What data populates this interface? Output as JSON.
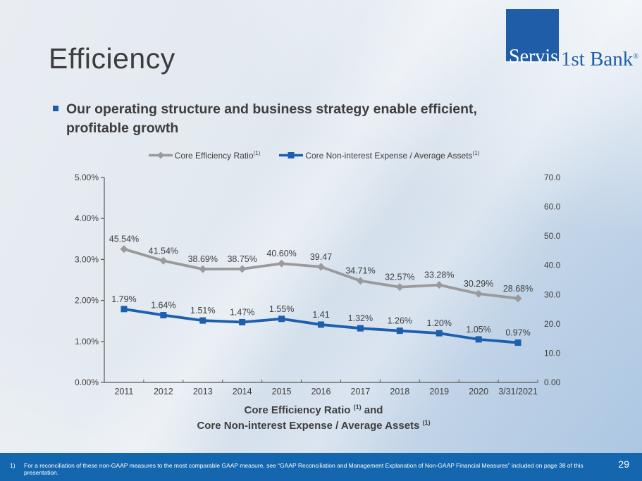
{
  "slide": {
    "title": "Efficiency",
    "bullet": "Our operating structure and business strategy enable efficient, profitable growth",
    "footnote_number": "1)",
    "footnote": "For a reconciliation of these non-GAAP measures to the most comparable GAAP measure, see “GAAP Reconciliation and Management Explanation of Non-GAAP Financial Measures” included on page 38 of this presentation.",
    "page_number": "29"
  },
  "logo": {
    "part1": "Servis",
    "part2": "1st Bank",
    "registered": "®",
    "square_color": "#1f5da8"
  },
  "colors": {
    "accent_blue": "#1f5da8",
    "series_gray": "#9a9a9a",
    "series_blue": "#1d5fad",
    "footer_bar": "#1467ae",
    "axis": "#595959",
    "text_dark": "#3e3e3e"
  },
  "chart_data": {
    "type": "line",
    "title_line1": "Core Efficiency Ratio",
    "title_sup1": "(1)",
    "title_join": "and",
    "title_line2": "Core Non-interest Expense / Average Assets",
    "title_sup2": "(1)",
    "categories": [
      "2011",
      "2012",
      "2013",
      "2014",
      "2015",
      "2016",
      "2017",
      "2018",
      "2019",
      "2020",
      "3/31/2021"
    ],
    "series": [
      {
        "name": "Core Efficiency Ratio",
        "sup": "(1)",
        "axis": "right",
        "color": "#9a9a9a",
        "marker": "diamond",
        "values": [
          45.54,
          41.54,
          38.69,
          38.75,
          40.6,
          39.47,
          34.71,
          32.57,
          33.28,
          30.29,
          28.68
        ],
        "labels": [
          "45.54%",
          "41.54%",
          "38.69%",
          "38.75%",
          "40.60%",
          "39.47",
          "34.71%",
          "32.57%",
          "33.28%",
          "30.29%",
          "28.68%"
        ]
      },
      {
        "name": "Core Non-interest Expense / Average Assets",
        "sup": "(1)",
        "axis": "left",
        "color": "#1d5fad",
        "marker": "square",
        "values": [
          1.79,
          1.64,
          1.51,
          1.47,
          1.55,
          1.41,
          1.32,
          1.26,
          1.2,
          1.05,
          0.97
        ],
        "labels": [
          "1.79%",
          "1.64%",
          "1.51%",
          "1.47%",
          "1.55%",
          "1.41",
          "1.32%",
          "1.26%",
          "1.20%",
          "1.05%",
          "0.97%"
        ]
      }
    ],
    "left_axis": {
      "min": 0,
      "max": 5,
      "tick_labels": [
        "5.00%",
        "4.00%",
        "3.00%",
        "2.00%",
        "1.00%",
        "0.00%"
      ]
    },
    "right_axis": {
      "min": 0,
      "max": 70,
      "tick_labels": [
        "70.00%",
        "60.00%",
        "50.00%",
        "40.00%",
        "30.00%",
        "20.00%",
        "10.00%",
        "0.00%"
      ]
    },
    "grid": false,
    "legend_position": "top"
  }
}
